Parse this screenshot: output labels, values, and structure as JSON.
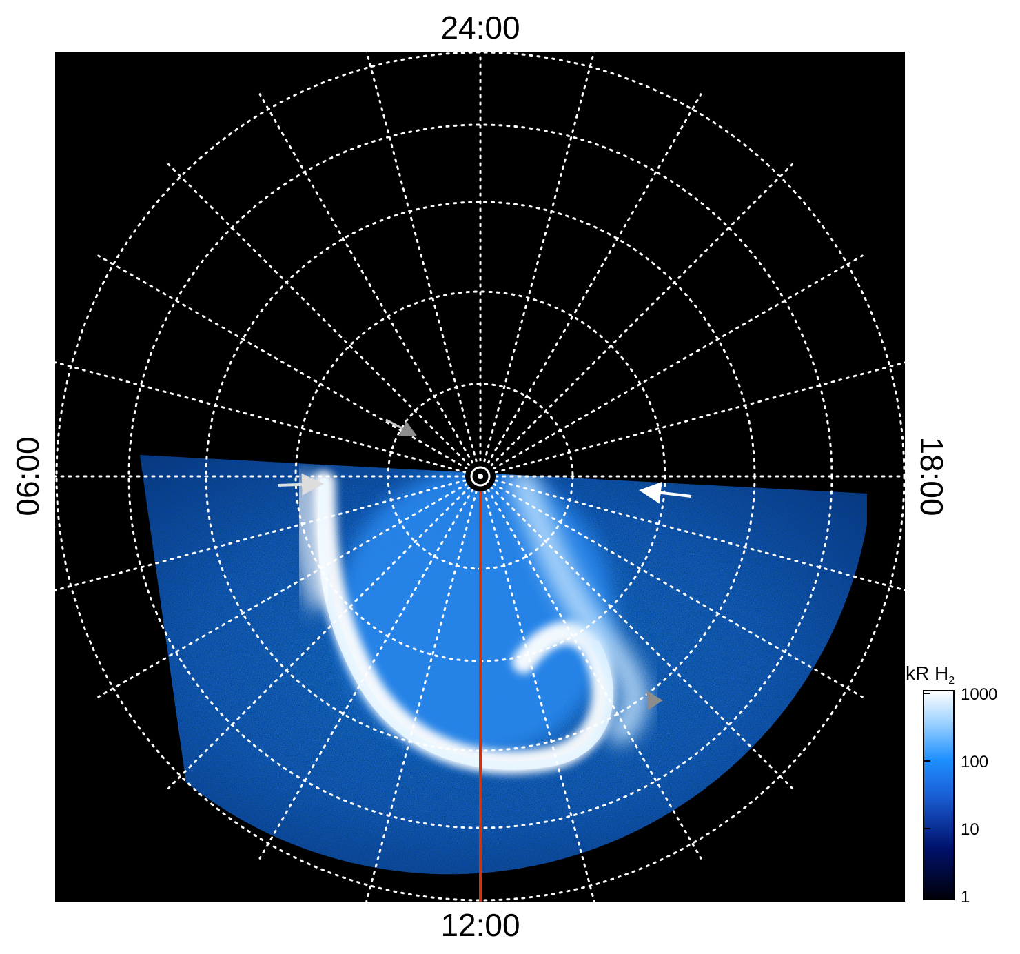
{
  "local_time_labels": {
    "top": "24:00",
    "bottom": "12:00",
    "left": "06:00",
    "right": "18:00"
  },
  "colorbar": {
    "title": "kR H",
    "title_subscript": "2",
    "ticks": [
      "1000",
      "100",
      "10",
      "1"
    ],
    "scale": "log",
    "range": [
      1,
      1000
    ],
    "colors": [
      "#000008",
      "#00126e",
      "#1a5fd6",
      "#1e90ff",
      "#9fd3ff",
      "#ffffff"
    ]
  },
  "colors": {
    "background": "#000000",
    "grid": "#ffffff",
    "meridian": "#c0391b",
    "arrow_light": "#dddddd",
    "arrow_gray": "#8c8c8c",
    "emission_dim": "#0c3a9c",
    "emission_mid": "#1f7be8",
    "emission_bright": "#ffffff"
  },
  "grid": {
    "latitude_rings": 5,
    "meridians": 24
  },
  "arrows": [
    {
      "name": "arrow-dawn",
      "color": "light"
    },
    {
      "name": "arrow-dusk",
      "color": "white"
    },
    {
      "name": "arrow-pole",
      "color": "gray"
    },
    {
      "name": "arrow-afternoon",
      "color": "gray"
    }
  ]
}
